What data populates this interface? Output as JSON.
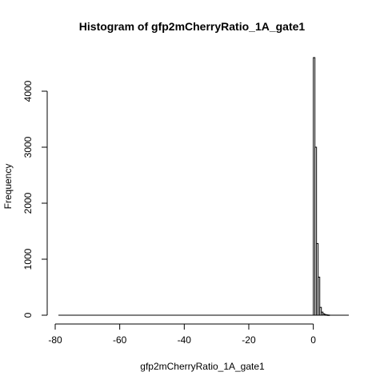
{
  "chart_data": {
    "type": "bar",
    "title": "Histogram of gfp2mCherryRatio_1A_gate1",
    "xlabel": "gfp2mCherryRatio_1A_gate1",
    "ylabel": "Frequency",
    "xlim": [
      -80,
      11
    ],
    "ylim": [
      0,
      4600
    ],
    "x_ticks": [
      -80,
      -60,
      -40,
      -20,
      0
    ],
    "y_ticks": [
      0,
      1000,
      2000,
      3000,
      4000
    ],
    "x_tick_labels": [
      "-80",
      "-60",
      "-40",
      "-20",
      "0"
    ],
    "y_tick_labels": [
      "0",
      "1000",
      "2000",
      "3000",
      "4000"
    ],
    "bin_width": 0.5,
    "bins": [
      {
        "x0": 0.0,
        "x1": 0.5,
        "count": 4600
      },
      {
        "x0": 0.5,
        "x1": 1.0,
        "count": 3000
      },
      {
        "x0": 1.0,
        "x1": 1.5,
        "count": 1280
      },
      {
        "x0": 1.5,
        "x1": 2.0,
        "count": 680
      },
      {
        "x0": 2.0,
        "x1": 2.5,
        "count": 140
      },
      {
        "x0": 2.5,
        "x1": 3.0,
        "count": 55
      },
      {
        "x0": 3.0,
        "x1": 3.5,
        "count": 25
      },
      {
        "x0": 3.5,
        "x1": 4.0,
        "count": 12
      },
      {
        "x0": 4.0,
        "x1": 4.5,
        "count": 6
      },
      {
        "x0": 4.5,
        "x1": 5.0,
        "count": 3
      }
    ],
    "empty_range": [
      -79,
      11
    ],
    "grid": false,
    "legend": "none"
  }
}
